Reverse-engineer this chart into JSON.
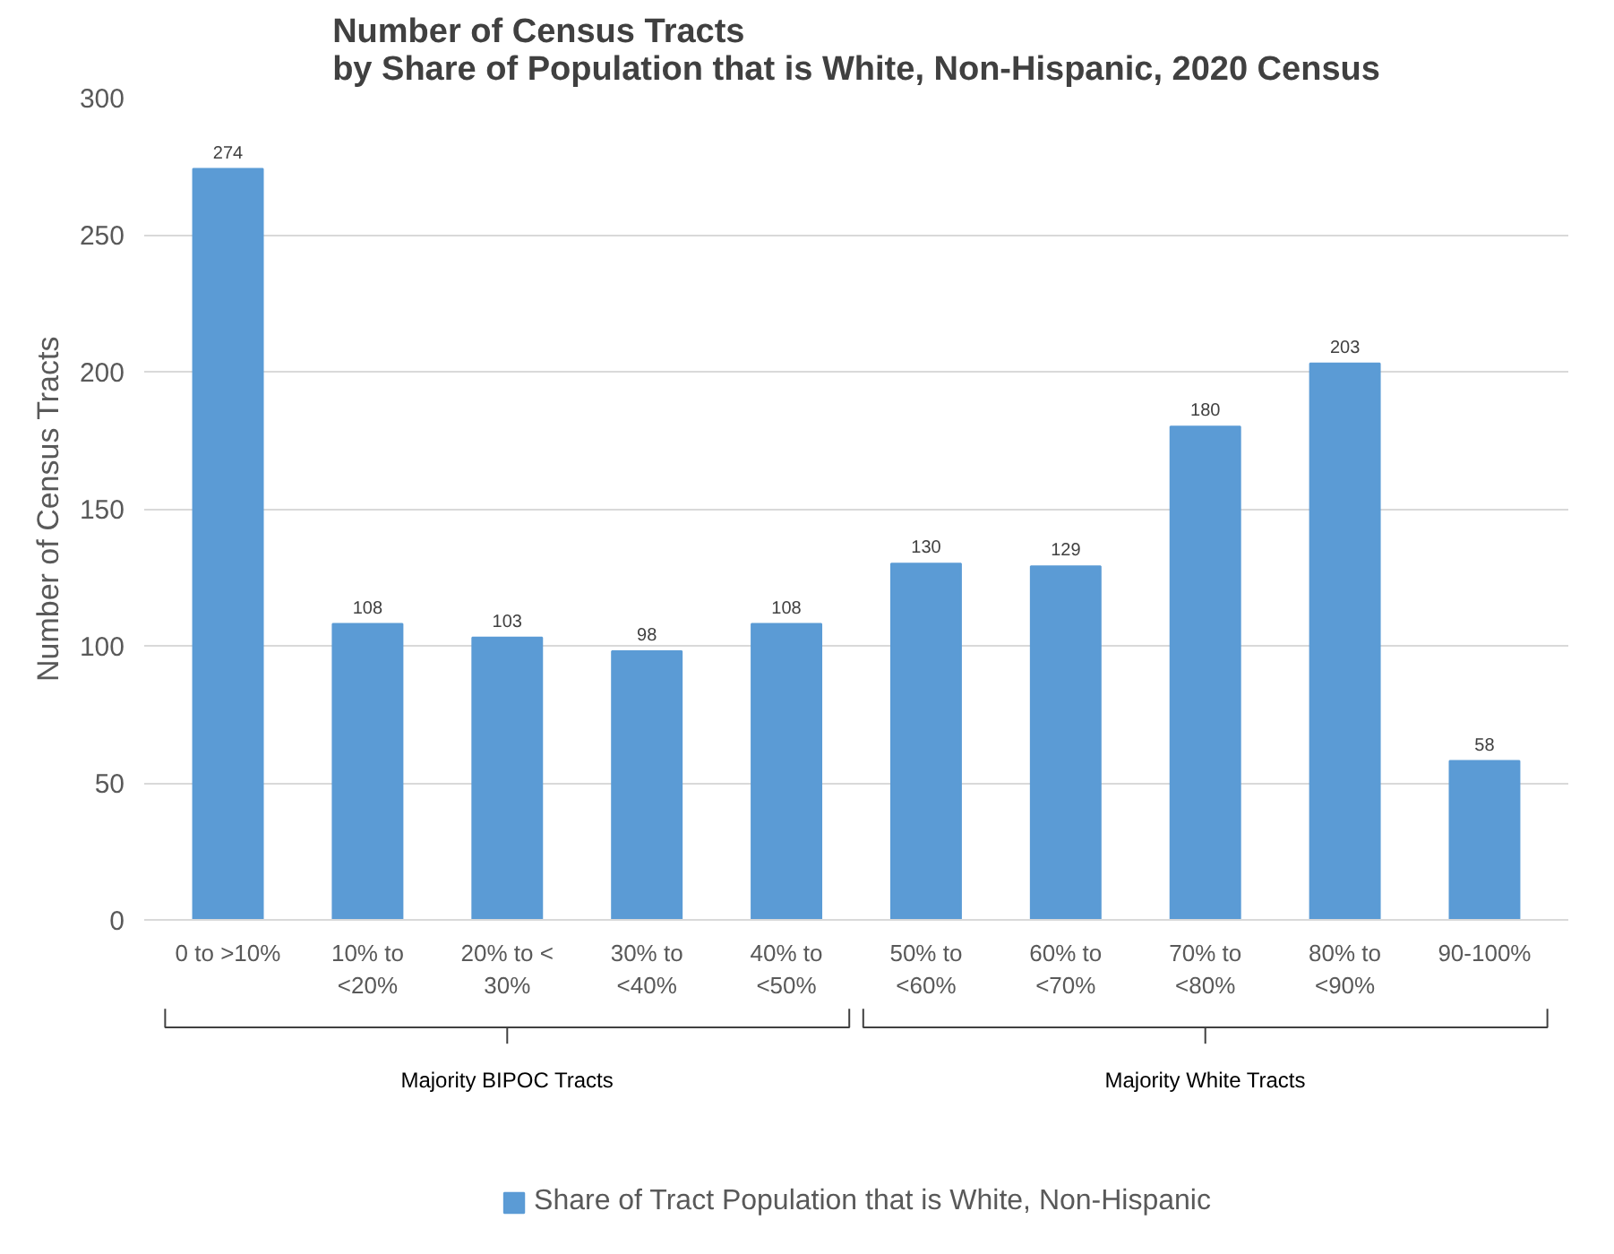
{
  "chart_data": {
    "type": "bar",
    "title": "Number of Census Tracts\nby Share of Population that is White, Non-Hispanic, 2020 Census",
    "ylabel": "Number of Census Tracts",
    "categories": [
      "0 to >10%",
      "10% to <20%",
      "20% to < 30%",
      "30% to <40%",
      "40% to <50%",
      "50% to <60%",
      "60% to <70%",
      "70% to <80%",
      "80% to <90%",
      "90-100%"
    ],
    "series": [
      {
        "name": "Share of Tract Population that is White, Non-Hispanic",
        "color": "#5b9bd5",
        "values": [
          274,
          108,
          103,
          98,
          108,
          130,
          129,
          180,
          203,
          58
        ]
      }
    ],
    "ylim": [
      0,
      300
    ],
    "yticks": [
      0,
      50,
      100,
      150,
      200,
      250,
      300
    ],
    "grid": "y",
    "legend": "bottom",
    "data_labels": true,
    "annotations": [
      "Majority BIPOC Tracts",
      "Majority White Tracts"
    ]
  }
}
